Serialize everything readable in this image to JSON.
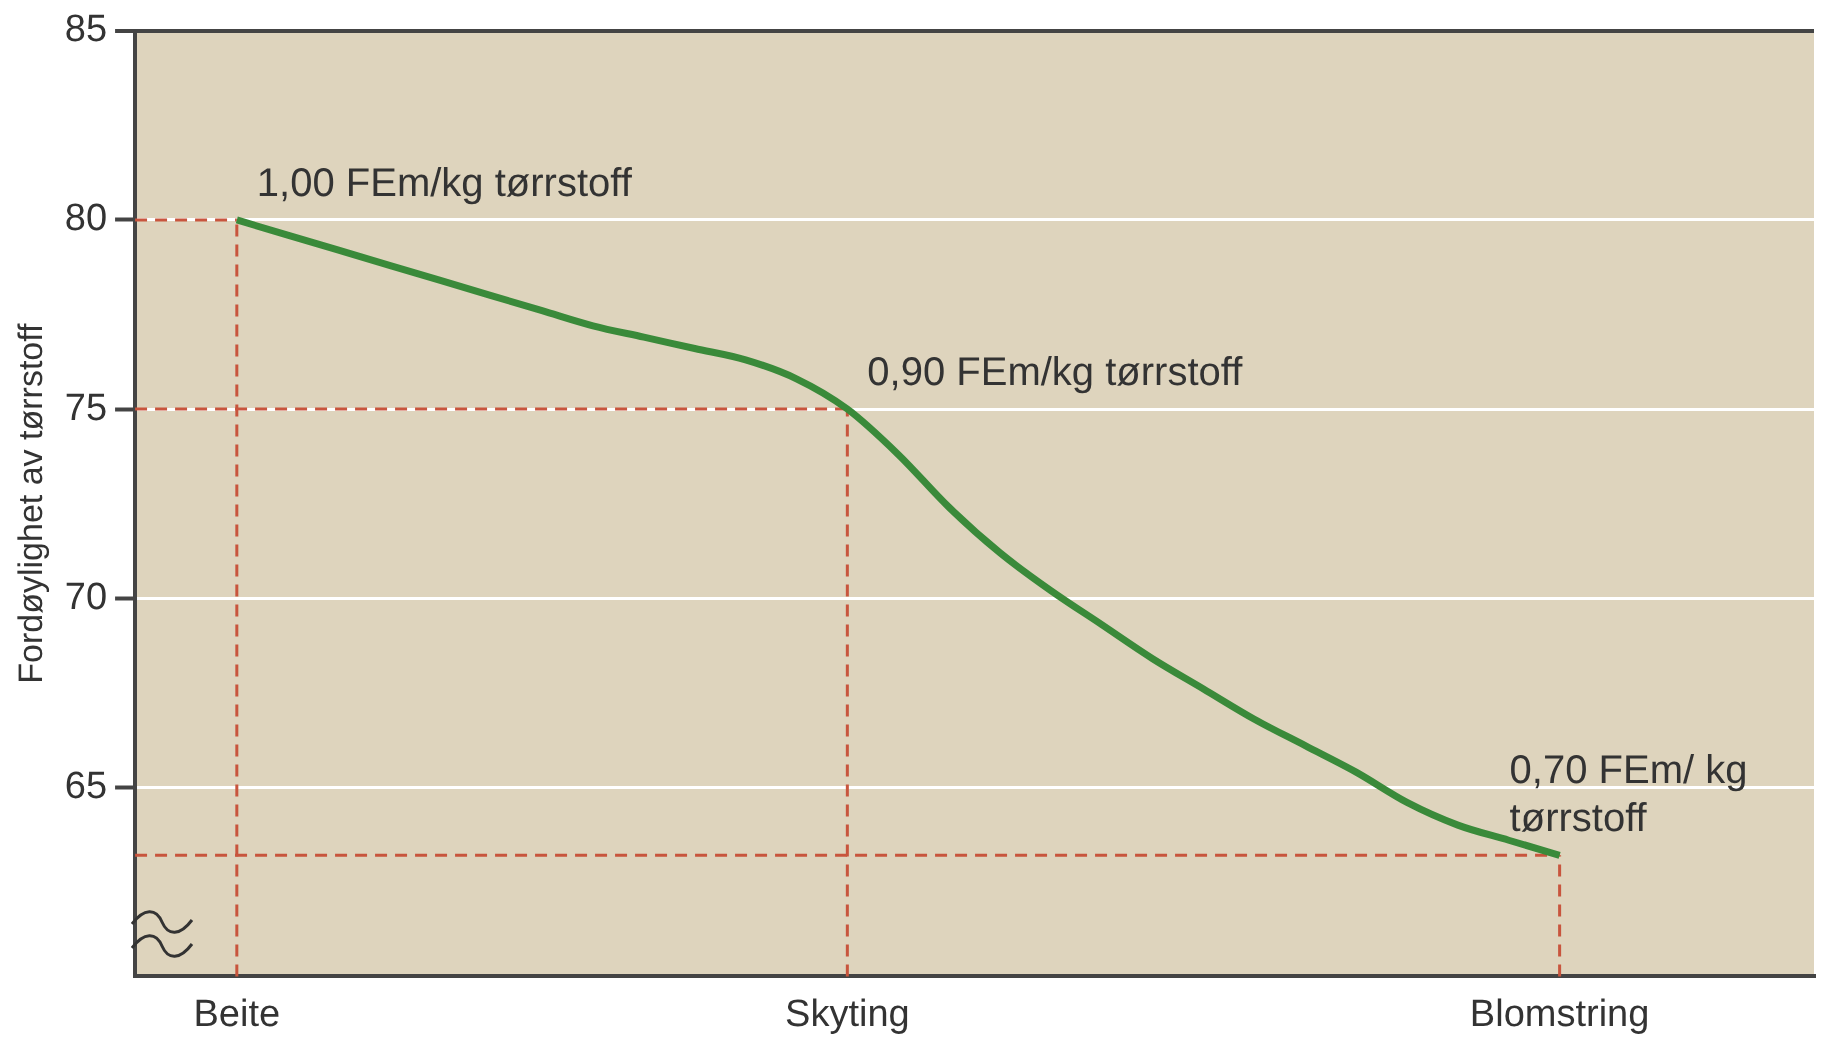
{
  "chart_data": {
    "type": "line",
    "ylabel": "Fordøylighet av tørrstoff",
    "categories": [
      null,
      null,
      "Beite",
      null,
      null,
      null,
      null,
      null,
      null,
      null,
      null,
      null,
      null,
      null,
      "Skyting",
      null,
      null,
      null,
      null,
      null,
      null,
      null,
      null,
      null,
      null,
      null,
      null,
      null,
      "Blomstring",
      null,
      null,
      null,
      null,
      null
    ],
    "ylim": [
      60,
      85
    ],
    "yticks": [
      65,
      70,
      75,
      80,
      85
    ],
    "series": [
      {
        "color": "#3a8a3a",
        "values": [
          null,
          null,
          80,
          79.6,
          79.2,
          78.8,
          78.4,
          78.0,
          77.6,
          77.2,
          76.9,
          76.6,
          76.3,
          75.8,
          75.0,
          73.8,
          72.4,
          71.2,
          70.2,
          69.3,
          68.4,
          67.6,
          66.8,
          66.1,
          65.4,
          64.6,
          64.0,
          63.6,
          63.2,
          null,
          null,
          null,
          null,
          null
        ]
      },
      {
        "color": "#c8553d",
        "line_style": "dashed",
        "values": [
          80,
          80,
          80,
          null,
          null,
          null,
          null,
          null,
          null,
          null,
          null,
          null,
          null,
          null,
          null,
          null,
          null,
          null,
          null,
          null,
          null,
          null,
          null,
          null,
          null,
          null,
          null,
          null,
          null,
          null,
          null,
          null,
          null,
          null
        ]
      },
      {
        "color": "#c8553d",
        "line_style": "dashed",
        "values": [
          75,
          75,
          75,
          75,
          75,
          75,
          75,
          75,
          75,
          75,
          75,
          75,
          75,
          75,
          75,
          null,
          null,
          null,
          null,
          null,
          null,
          null,
          null,
          null,
          null,
          null,
          null,
          null,
          null,
          null,
          null,
          null,
          null,
          null
        ]
      },
      {
        "color": "#c8553d",
        "line_style": "dashed",
        "values": [
          63.2,
          63.2,
          63.2,
          63.2,
          63.2,
          63.2,
          63.2,
          63.2,
          63.2,
          63.2,
          63.2,
          63.2,
          63.2,
          63.2,
          63.2,
          63.2,
          63.2,
          63.2,
          63.2,
          63.2,
          63.2,
          63.2,
          63.2,
          63.2,
          63.2,
          63.2,
          63.2,
          63.2,
          63.2,
          null,
          null,
          null,
          null,
          null
        ]
      }
    ],
    "ref_lines": [
      {
        "axis": "x",
        "value": "Beite",
        "color": "#c8553d",
        "line_style": "dashed"
      },
      {
        "axis": "x",
        "value": "Skyting",
        "color": "#c8553d",
        "line_style": "dashed"
      },
      {
        "axis": "x",
        "value": "Blomstring",
        "color": "#c8553d",
        "line_style": "dashed"
      }
    ],
    "annotations": [
      {
        "text": "1,00 FEm/kg tørrstoff",
        "x": "Beite",
        "y": 80
      },
      {
        "text": "0,90 FEm/kg tørrstoff",
        "x": "Skyting",
        "y": 75
      },
      {
        "text": "0,70 FEm/ kg tørrstoff",
        "x": "Blomstring",
        "y": 63.2
      }
    ],
    "grid": "y",
    "legend": false,
    "marker": "none"
  }
}
